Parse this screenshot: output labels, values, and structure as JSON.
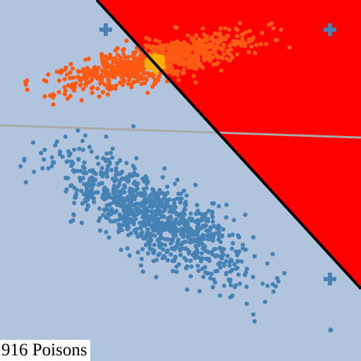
{
  "caption": "916 Poisons",
  "colors": {
    "background": "#b0c4de",
    "poison_region": "#ff0000",
    "decision_boundary": "#000000",
    "reference_line": "#aaaaaa",
    "class_a": "#4682b4",
    "class_b": "#ff5a14",
    "class_b_highlight": "#ffb000",
    "marker": "#4682b4"
  },
  "chart_data": {
    "type": "scatter",
    "xlim": [
      0,
      1
    ],
    "ylim": [
      0,
      1
    ],
    "grid": false,
    "legend": "none",
    "decision_boundary": {
      "x": [
        0.268,
        1.0
      ],
      "y": [
        1.0,
        0.2
      ]
    },
    "reference_line": {
      "x": [
        0.0,
        1.0
      ],
      "y": [
        0.653,
        0.619
      ]
    },
    "markers": [
      {
        "shape": "plus",
        "x": 0.293,
        "y": 0.918
      },
      {
        "shape": "plus",
        "x": 0.914,
        "y": 0.918
      },
      {
        "shape": "plus",
        "x": 0.914,
        "y": 0.227
      },
      {
        "shape": "dot",
        "x": 0.916,
        "y": 0.086
      }
    ],
    "series": [
      {
        "center": [
          0.43,
          0.4
        ],
        "axis_end_1": [
          0.086,
          0.6
        ],
        "axis_end_2": [
          0.764,
          0.2
        ],
        "width": 0.05,
        "count": 1000
      },
      {
        "center": [
          0.5,
          0.825
        ],
        "axis_end_1": [
          0.078,
          0.74
        ],
        "axis_end_2": [
          0.79,
          0.92
        ],
        "width": 0.025,
        "count": 916,
        "highlight_center": [
          0.43,
          0.825
        ]
      }
    ]
  }
}
